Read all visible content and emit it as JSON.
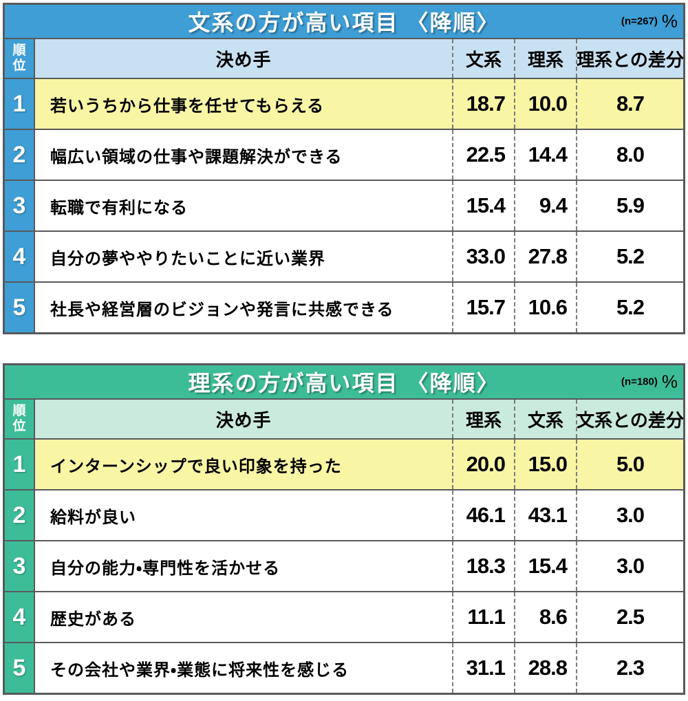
{
  "tables": [
    {
      "title": "文系の方が高い項目 〈降順〉",
      "sample": "(n=267)",
      "unit": "%",
      "rank_header": "順位",
      "col_factor": "決め手",
      "col1": "文系",
      "col2": "理系",
      "col_diff": "理系との差分",
      "accent_color": "#3e9ed5",
      "light_color": "#c8e1f2",
      "highlight_color": "#f8f5a5",
      "rows": [
        {
          "rank": "1",
          "label": "若いうちから仕事を任せてもらえる",
          "v1": "18.7",
          "v2": "10.0",
          "diff": "8.7"
        },
        {
          "rank": "2",
          "label": "幅広い領域の仕事や課題解決ができる",
          "v1": "22.5",
          "v2": "14.4",
          "diff": "8.0"
        },
        {
          "rank": "3",
          "label": "転職で有利になる",
          "v1": "15.4",
          "v2": "9.4",
          "diff": "5.9"
        },
        {
          "rank": "4",
          "label": "自分の夢ややりたいことに近い業界",
          "v1": "33.0",
          "v2": "27.8",
          "diff": "5.2"
        },
        {
          "rank": "5",
          "label": "社長や経営層のビジョンや発言に共感できる",
          "v1": "15.7",
          "v2": "10.6",
          "diff": "5.2"
        }
      ]
    },
    {
      "title": "理系の方が高い項目 〈降順〉",
      "sample": "(n=180)",
      "unit": "%",
      "rank_header": "順位",
      "col_factor": "決め手",
      "col1": "理系",
      "col2": "文系",
      "col_diff": "文系との差分",
      "accent_color": "#3dbd97",
      "light_color": "#caeadd",
      "highlight_color": "#f8f5a5",
      "rows": [
        {
          "rank": "1",
          "label": "インターンシップで良い印象を持った",
          "v1": "20.0",
          "v2": "15.0",
          "diff": "5.0"
        },
        {
          "rank": "2",
          "label": "給料が良い",
          "v1": "46.1",
          "v2": "43.1",
          "diff": "3.0"
        },
        {
          "rank": "3",
          "label": "自分の能力・専門性を活かせる",
          "v1": "18.3",
          "v2": "15.4",
          "diff": "3.0"
        },
        {
          "rank": "4",
          "label": "歴史がある",
          "v1": "11.1",
          "v2": "8.6",
          "diff": "2.5"
        },
        {
          "rank": "5",
          "label": "その会社や業界・業態に将来性を感じる",
          "v1": "31.1",
          "v2": "28.8",
          "diff": "2.3"
        }
      ]
    }
  ],
  "chart_data": [
    {
      "type": "table",
      "title": "文系の方が高い項目〈降順〉",
      "n": 267,
      "unit": "%",
      "columns": [
        "順位",
        "決め手",
        "文系",
        "理系",
        "理系との差分"
      ],
      "rows": [
        [
          1,
          "若いうちから仕事を任せてもらえる",
          18.7,
          10.0,
          8.7
        ],
        [
          2,
          "幅広い領域の仕事や課題解決ができる",
          22.5,
          14.4,
          8.0
        ],
        [
          3,
          "転職で有利になる",
          15.4,
          9.4,
          5.9
        ],
        [
          4,
          "自分の夢ややりたいことに近い業界",
          33.0,
          27.8,
          5.2
        ],
        [
          5,
          "社長や経営層のビジョンや発言に共感できる",
          15.7,
          10.6,
          5.2
        ]
      ]
    },
    {
      "type": "table",
      "title": "理系の方が高い項目〈降順〉",
      "n": 180,
      "unit": "%",
      "columns": [
        "順位",
        "決め手",
        "理系",
        "文系",
        "文系との差分"
      ],
      "rows": [
        [
          1,
          "インターンシップで良い印象を持った",
          20.0,
          15.0,
          5.0
        ],
        [
          2,
          "給料が良い",
          46.1,
          43.1,
          3.0
        ],
        [
          3,
          "自分の能力・専門性を活かせる",
          18.3,
          15.4,
          3.0
        ],
        [
          4,
          "歴史がある",
          11.1,
          8.6,
          2.5
        ],
        [
          5,
          "その会社や業界・業態に将来性を感じる",
          31.1,
          28.8,
          2.3
        ]
      ]
    }
  ]
}
